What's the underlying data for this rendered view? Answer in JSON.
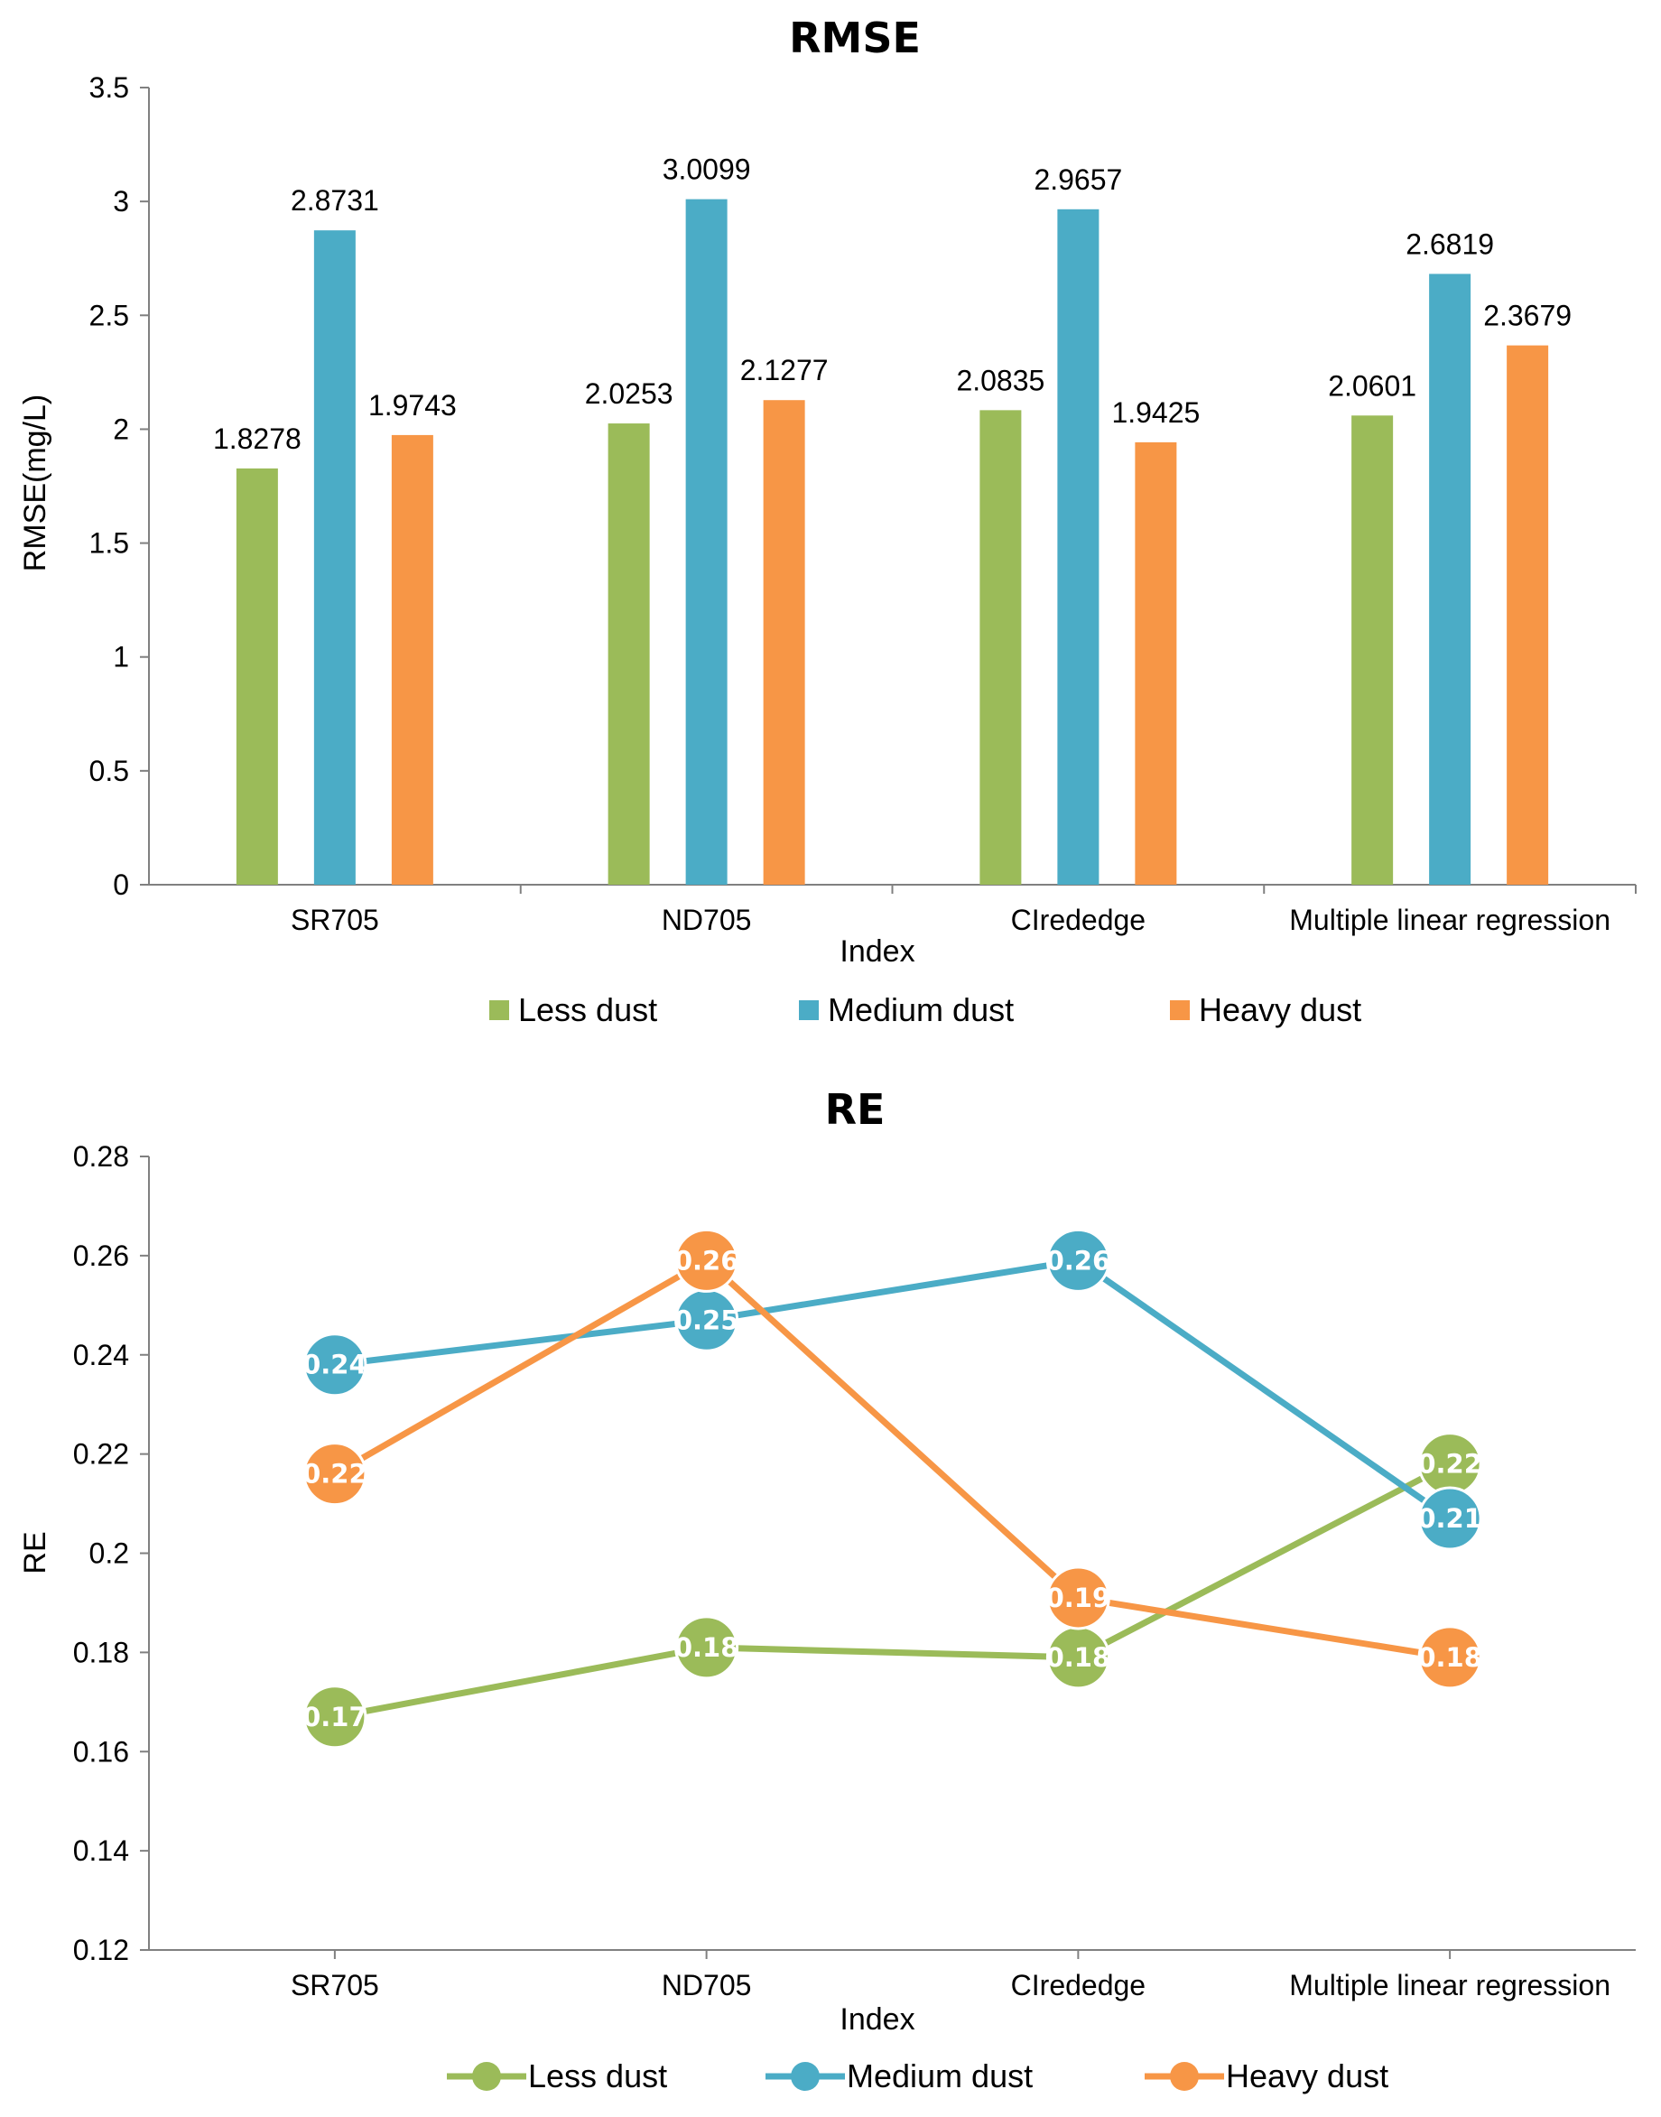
{
  "chart_data": [
    {
      "type": "bar",
      "title": "RMSE",
      "xlabel": "Index",
      "ylabel": "RMSE(mg/L)",
      "ylim": [
        0,
        3.5
      ],
      "yticks": [
        "0",
        "0.5",
        "1",
        "1.5",
        "2",
        "2.5",
        "3",
        "3.5"
      ],
      "categories": [
        "SR705",
        "ND705",
        "CIrededge",
        "Multiple linear regression"
      ],
      "series": [
        {
          "name": "Less dust",
          "color": "#9BBB59",
          "values": [
            1.8278,
            2.0253,
            2.0835,
            2.0601
          ],
          "labels": [
            "1.8278",
            "2.0253",
            "2.0835",
            "2.0601"
          ]
        },
        {
          "name": "Medium dust",
          "color": "#4BACC6",
          "values": [
            2.8731,
            3.0099,
            2.9657,
            2.6819
          ],
          "labels": [
            "2.8731",
            "3.0099",
            "2.9657",
            "2.6819"
          ]
        },
        {
          "name": "Heavy dust",
          "color": "#F79646",
          "values": [
            1.9743,
            2.1277,
            1.9425,
            2.3679
          ],
          "labels": [
            "1.9743",
            "2.1277",
            "1.9425",
            "2.3679"
          ]
        }
      ],
      "legend": "bottom"
    },
    {
      "type": "line",
      "title": "RE",
      "xlabel": "Index",
      "ylabel": "RE",
      "ylim": [
        0.12,
        0.28
      ],
      "yticks": [
        "0.12",
        "0.14",
        "0.16",
        "0.18",
        "0.2",
        "0.22",
        "0.24",
        "0.26",
        "0.28"
      ],
      "categories": [
        "SR705",
        "ND705",
        "CIrededge",
        "Multiple linear regression"
      ],
      "series": [
        {
          "name": "Less dust",
          "color": "#9BBB59",
          "values": [
            0.167,
            0.181,
            0.179,
            0.218
          ],
          "labels": [
            "0.17",
            "0.18",
            "0.18",
            "0.22"
          ]
        },
        {
          "name": "Medium dust",
          "color": "#4BACC6",
          "values": [
            0.238,
            0.247,
            0.259,
            0.207
          ],
          "labels": [
            "0.24",
            "0.25",
            "0.26",
            "0.21"
          ]
        },
        {
          "name": "Heavy dust",
          "color": "#F79646",
          "values": [
            0.216,
            0.259,
            0.191,
            0.179
          ],
          "labels": [
            "0.22",
            "0.26",
            "0.19",
            "0.18"
          ]
        }
      ],
      "legend": "bottom"
    }
  ]
}
